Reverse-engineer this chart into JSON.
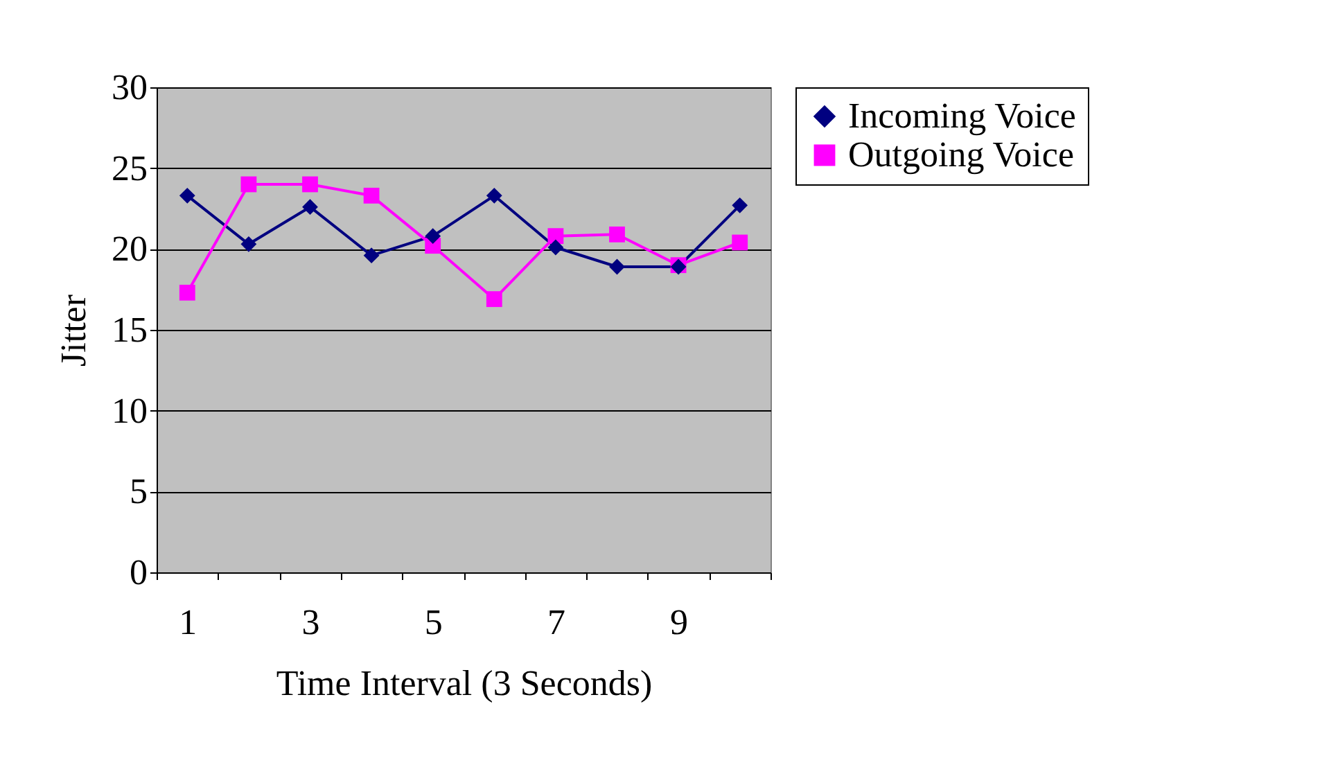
{
  "chart_data": {
    "type": "line",
    "xlabel": "Time Interval (3 Seconds)",
    "ylabel": "Jitter",
    "categories": [
      "1",
      null,
      "3",
      null,
      "5",
      null,
      "7",
      null,
      "9",
      null
    ],
    "series": [
      {
        "name": "Incoming Voice",
        "color": "#000080",
        "marker": "diamond",
        "values": [
          23.3,
          20.3,
          22.6,
          19.6,
          20.8,
          23.3,
          20.1,
          18.9,
          18.9,
          22.7
        ]
      },
      {
        "name": "Outgoing Voice",
        "color": "#ff00ff",
        "marker": "square",
        "values": [
          17.3,
          24.0,
          24.0,
          23.3,
          20.2,
          16.9,
          20.8,
          20.9,
          19.0,
          20.4
        ]
      }
    ],
    "ylim": [
      0,
      30
    ],
    "yticks": [
      0,
      5,
      10,
      15,
      20,
      25,
      30
    ],
    "grid": "y",
    "legend": "right",
    "line_style": "solid"
  }
}
